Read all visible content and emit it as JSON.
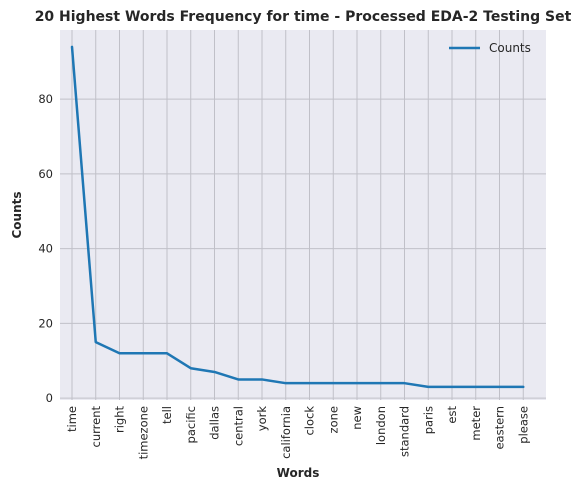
{
  "chart_data": {
    "type": "line",
    "title": "20 Highest Words Frequency for time - Processed EDA-2 Testing Set",
    "xlabel": "Words",
    "ylabel": "Counts",
    "categories": [
      "time",
      "current",
      "right",
      "timezone",
      "tell",
      "pacific",
      "dallas",
      "central",
      "york",
      "california",
      "clock",
      "zone",
      "new",
      "london",
      "standard",
      "paris",
      "est",
      "meter",
      "eastern",
      "please"
    ],
    "series": [
      {
        "name": "Counts",
        "values": [
          94,
          15,
          12,
          12,
          12,
          8,
          7,
          5,
          5,
          4,
          4,
          4,
          4,
          4,
          4,
          3,
          3,
          3,
          3,
          3
        ]
      }
    ],
    "yticks": [
      0,
      20,
      40,
      60,
      80
    ],
    "ylim": [
      -0.5,
      98.5
    ],
    "grid": true,
    "legend": "top-right",
    "colors": {
      "line": "#1f77b4",
      "background": "#eaeaf2",
      "grid": "#c0c0c8"
    }
  }
}
